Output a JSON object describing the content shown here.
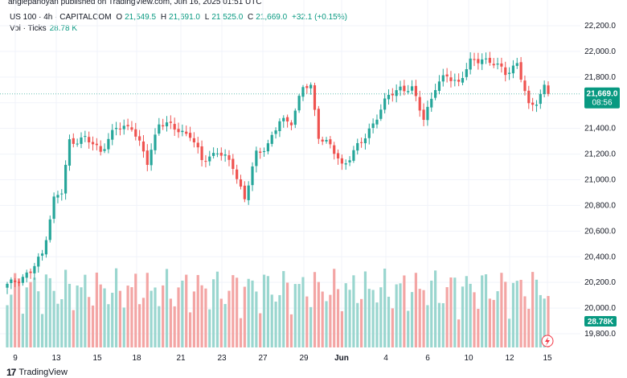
{
  "publisher_line": "anglepanoyan published on TradingView.com, Jun 16, 2025 01:51 UTC",
  "legend": {
    "symbol": "US 100 · 4h · CAPITALCOM",
    "open_label": "O",
    "open": "21,549.5",
    "high_label": "H",
    "high": "21,691.0",
    "low_label": "L",
    "low": "21,525.0",
    "close_label": "C",
    "close": "21,669.0",
    "change": "+32.1 (+0.15%)"
  },
  "volume_legend": {
    "label": "Vol · Ticks",
    "value": "28.78 K"
  },
  "footer": {
    "brand": "TradingView",
    "logo_mark": "17"
  },
  "colors": {
    "up": "#26a69a",
    "down": "#ef5350",
    "vol_up": "#9ad6cf",
    "vol_down": "#f3a5a4",
    "last_price_bg": "#089981"
  },
  "chart_data": {
    "type": "candlestick",
    "price_axis_ticks": [
      "22,200.0",
      "22,000.0",
      "21,800.0",
      "21,600.0",
      "21,400.0",
      "21,200.0",
      "21,000.0",
      "20,800.0",
      "20,600.0",
      "20,400.0",
      "20,200.0",
      "20,000.0",
      "19,800.0"
    ],
    "price_tick_values": [
      22200,
      22000,
      21800,
      21600,
      21400,
      21200,
      21000,
      20800,
      20600,
      20400,
      20200,
      20000,
      19800
    ],
    "x_ticks": [
      "9",
      "13",
      "15",
      "18",
      "21",
      "23",
      "27",
      "29",
      "Jun",
      "4",
      "6",
      "10",
      "12",
      "15"
    ],
    "last_price": {
      "value": 21669.0,
      "label": "21,669.0",
      "countdown": "08:56"
    },
    "last_volume": {
      "value": 28.78,
      "label": "28.78K"
    },
    "price_anchors": [
      [
        0,
        20175
      ],
      [
        6,
        20280
      ],
      [
        9,
        20420
      ],
      [
        12,
        20850
      ],
      [
        14,
        20900
      ],
      [
        16,
        21300
      ],
      [
        20,
        21320
      ],
      [
        24,
        21230
      ],
      [
        28,
        21400
      ],
      [
        32,
        21420
      ],
      [
        36,
        21130
      ],
      [
        39,
        21450
      ],
      [
        43,
        21400
      ],
      [
        47,
        21350
      ],
      [
        50,
        21150
      ],
      [
        54,
        21220
      ],
      [
        58,
        21110
      ],
      [
        61,
        20850
      ],
      [
        64,
        21200
      ],
      [
        67,
        21280
      ],
      [
        70,
        21450
      ],
      [
        73,
        21460
      ],
      [
        76,
        21720
      ],
      [
        78,
        21720
      ],
      [
        80,
        21350
      ],
      [
        83,
        21260
      ],
      [
        86,
        21110
      ],
      [
        89,
        21220
      ],
      [
        92,
        21330
      ],
      [
        95,
        21500
      ],
      [
        98,
        21650
      ],
      [
        101,
        21720
      ],
      [
        104,
        21700
      ],
      [
        107,
        21480
      ],
      [
        110,
        21720
      ],
      [
        113,
        21810
      ],
      [
        116,
        21760
      ],
      [
        119,
        21910
      ],
      [
        122,
        21950
      ],
      [
        125,
        21900
      ],
      [
        128,
        21840
      ],
      [
        131,
        21900
      ],
      [
        134,
        21570
      ],
      [
        136,
        21620
      ],
      [
        138,
        21720
      ],
      [
        139,
        21669
      ]
    ],
    "volume_range": [
      0,
      32
    ]
  }
}
